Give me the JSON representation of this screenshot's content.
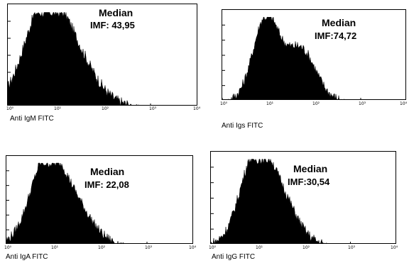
{
  "chart_data": [
    {
      "type": "area",
      "xlabel": "Anti IgM FITC",
      "annotation_title": "Median",
      "annotation_value": "IMF: 43,95",
      "x_scale": "log",
      "xlim": [
        1,
        10000
      ],
      "tick_labels": [
        "10⁰",
        "10¹",
        "10²",
        "10³",
        "10⁴"
      ],
      "color": "#000000",
      "peaks": [
        {
          "decade": 0.75,
          "width": 0.42,
          "height": 1.0
        },
        {
          "decade": 1.4,
          "width": 0.45,
          "height": 0.48
        }
      ]
    },
    {
      "type": "area",
      "xlabel": "Anti Igs FITC",
      "annotation_title": "Median",
      "annotation_value": "IMF:74,72",
      "x_scale": "log",
      "xlim": [
        1,
        10000
      ],
      "tick_labels": [
        "10⁰",
        "10¹",
        "10²",
        "10³",
        "10⁴"
      ],
      "color": "#000000",
      "peaks": [
        {
          "decade": 0.95,
          "width": 0.28,
          "height": 1.0
        },
        {
          "decade": 1.7,
          "width": 0.32,
          "height": 0.62
        }
      ]
    },
    {
      "type": "area",
      "xlabel": "Anti IgA FITC",
      "annotation_title": "Median",
      "annotation_value": "IMF: 22,08",
      "x_scale": "log",
      "xlim": [
        1,
        10000
      ],
      "tick_labels": [
        "10⁰",
        "10¹",
        "10²",
        "10³",
        "10⁴"
      ],
      "color": "#000000",
      "peaks": [
        {
          "decade": 0.85,
          "width": 0.35,
          "height": 1.0
        },
        {
          "decade": 1.45,
          "width": 0.38,
          "height": 0.45
        }
      ]
    },
    {
      "type": "area",
      "xlabel": "Anti IgG FITC",
      "annotation_title": "Median",
      "annotation_value": "IMF:30,54",
      "x_scale": "log",
      "xlim": [
        1,
        10000
      ],
      "tick_labels": [
        "10⁰",
        "10¹",
        "10²",
        "10³",
        "10⁴"
      ],
      "color": "#000000",
      "peaks": [
        {
          "decade": 0.95,
          "width": 0.33,
          "height": 1.0
        },
        {
          "decade": 1.5,
          "width": 0.35,
          "height": 0.5
        }
      ]
    }
  ]
}
